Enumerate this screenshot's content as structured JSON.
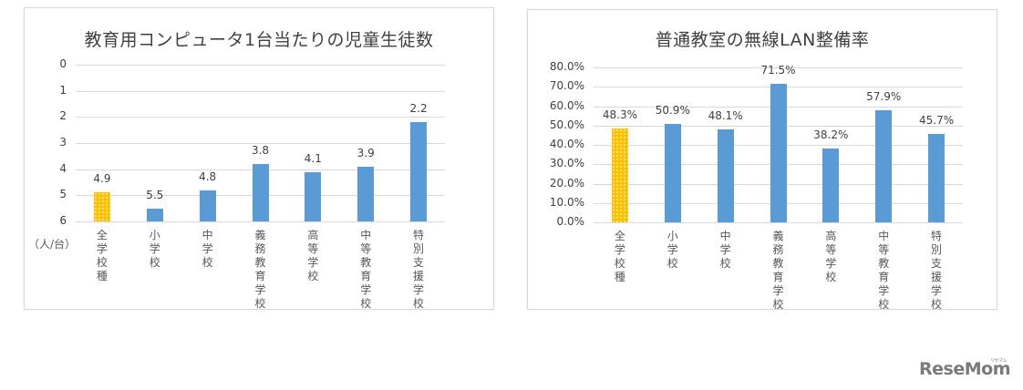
{
  "charts": [
    {
      "title": "教育用コンピュータ1台当たりの児童生徒数",
      "unit_label": "（人/台）",
      "y_ticks": [
        "0",
        "1",
        "2",
        "3",
        "4",
        "5",
        "6"
      ],
      "categories": [
        {
          "label": "全学校種",
          "value": "4.9",
          "highlight": true
        },
        {
          "label": "小学校",
          "value": "5.5",
          "highlight": false
        },
        {
          "label": "中学校",
          "value": "4.8",
          "highlight": false
        },
        {
          "label": "義務教育学校",
          "value": "3.8",
          "highlight": false
        },
        {
          "label": "高等学校",
          "value": "4.1",
          "highlight": false
        },
        {
          "label": "中等教育学校",
          "value": "3.9",
          "highlight": false
        },
        {
          "label": "特別支援学校",
          "value": "2.2",
          "highlight": false
        }
      ]
    },
    {
      "title": "普通教室の無線LAN整備率",
      "y_ticks": [
        "80.0%",
        "70.0%",
        "60.0%",
        "50.0%",
        "40.0%",
        "30.0%",
        "20.0%",
        "10.0%",
        "0.0%"
      ],
      "categories": [
        {
          "label": "全学校種",
          "value": "48.3%",
          "highlight": true
        },
        {
          "label": "小学校",
          "value": "50.9%",
          "highlight": false
        },
        {
          "label": "中学校",
          "value": "48.1%",
          "highlight": false
        },
        {
          "label": "義務教育学校",
          "value": "71.5%",
          "highlight": false
        },
        {
          "label": "高等学校",
          "value": "38.2%",
          "highlight": false
        },
        {
          "label": "中等教育学校",
          "value": "57.9%",
          "highlight": false
        },
        {
          "label": "特別支援学校",
          "value": "45.7%",
          "highlight": false
        }
      ]
    }
  ],
  "colors": {
    "highlight": "#FFC000",
    "bar": "#5B9BD5",
    "grid": "#D9D9D9"
  },
  "watermark": {
    "text": "ReseMom",
    "sup": "リセマム"
  },
  "chart_data": [
    {
      "type": "bar",
      "title": "教育用コンピュータ1台当たりの児童生徒数",
      "categories": [
        "全学校種",
        "小学校",
        "中学校",
        "義務教育学校",
        "高等学校",
        "中等教育学校",
        "特別支援学校"
      ],
      "values": [
        4.9,
        5.5,
        4.8,
        3.8,
        4.1,
        3.9,
        2.2
      ],
      "xlabel": "",
      "ylabel": "（人/台）",
      "ylim": [
        0,
        6
      ],
      "y_axis_reversed": true,
      "y_ticks": [
        0,
        1,
        2,
        3,
        4,
        5,
        6
      ],
      "grid": true,
      "legend": "none",
      "data_labels": true,
      "highlighted_category": "全学校種"
    },
    {
      "type": "bar",
      "title": "普通教室の無線LAN整備率",
      "categories": [
        "全学校種",
        "小学校",
        "中学校",
        "義務教育学校",
        "高等学校",
        "中等教育学校",
        "特別支援学校"
      ],
      "values": [
        48.3,
        50.9,
        48.1,
        71.5,
        38.2,
        57.9,
        45.7
      ],
      "value_format": "percent",
      "xlabel": "",
      "ylabel": "",
      "ylim": [
        0,
        80
      ],
      "y_ticks": [
        0,
        10,
        20,
        30,
        40,
        50,
        60,
        70,
        80
      ],
      "grid": true,
      "legend": "none",
      "data_labels": true,
      "highlighted_category": "全学校種"
    }
  ]
}
